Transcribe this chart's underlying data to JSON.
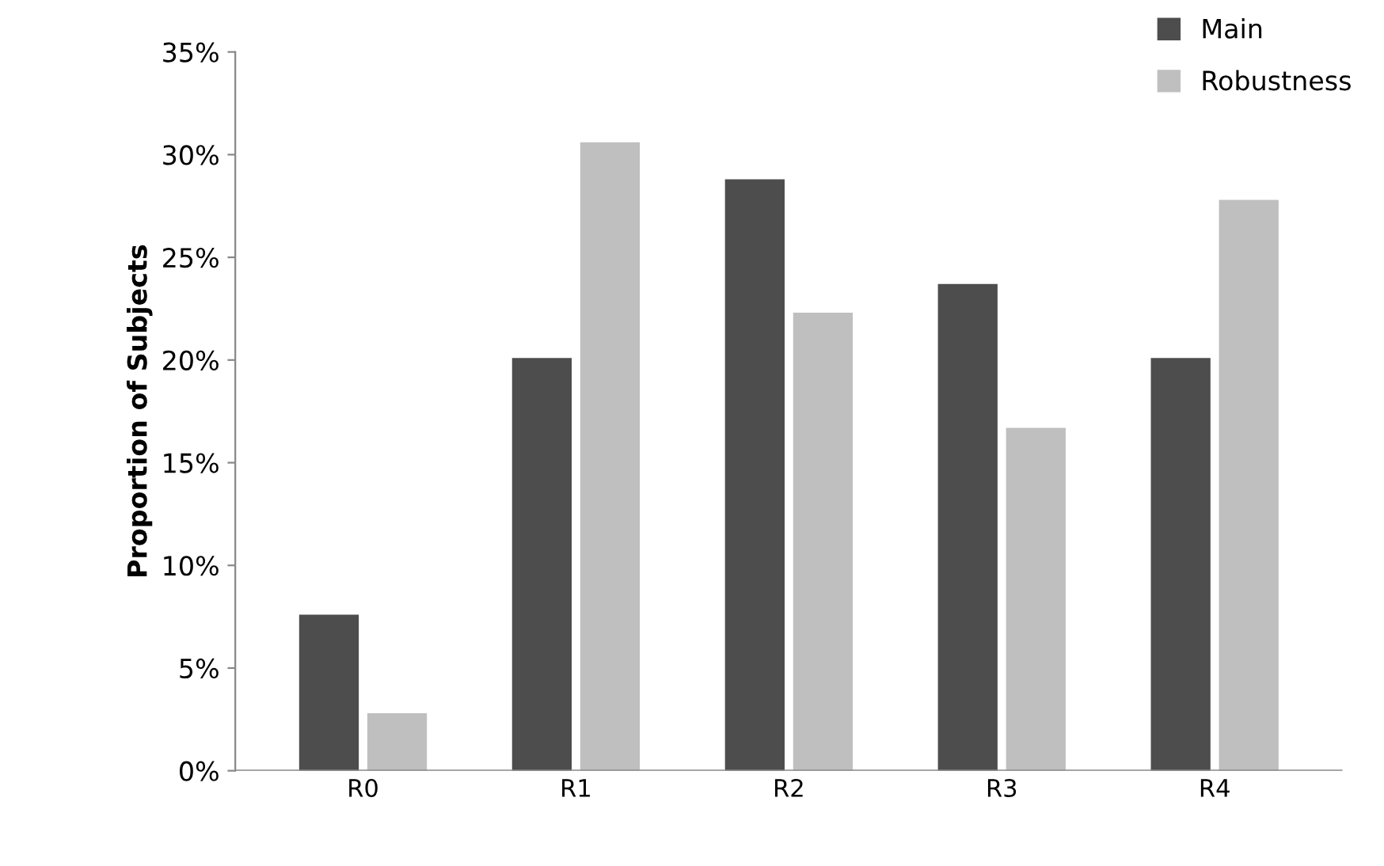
{
  "chart_data": {
    "type": "bar",
    "ylabel": "Proportion of Subjects",
    "categories": [
      "R0",
      "R1",
      "R2",
      "R3",
      "R4"
    ],
    "series": [
      {
        "name": "Main",
        "color": "#4d4d4d",
        "values": [
          7.6,
          20.1,
          28.8,
          23.7,
          20.1
        ]
      },
      {
        "name": "Robustness",
        "color": "#bfbfbf",
        "values": [
          2.8,
          30.6,
          22.3,
          16.7,
          27.8
        ]
      }
    ],
    "ylim": [
      0,
      35
    ],
    "yticks": [
      {
        "value": 0,
        "label": "0%"
      },
      {
        "value": 5,
        "label": "5%"
      },
      {
        "value": 10,
        "label": "10%"
      },
      {
        "value": 15,
        "label": "15%"
      },
      {
        "value": 20,
        "label": "20%"
      },
      {
        "value": 25,
        "label": "25%"
      },
      {
        "value": 30,
        "label": "30%"
      },
      {
        "value": 35,
        "label": "35%"
      }
    ],
    "grid": false,
    "legend": "top right"
  }
}
